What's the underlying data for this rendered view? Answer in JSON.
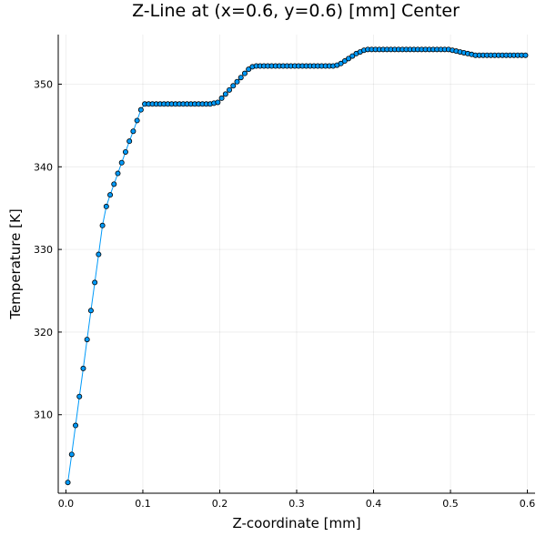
{
  "chart_data": {
    "type": "line",
    "title": "Z-Line at (x=0.6, y=0.6) [mm] Center",
    "xlabel": "Z-coordinate [mm]",
    "ylabel": "Temperature [K]",
    "xlim": [
      -0.01,
      0.61
    ],
    "ylim": [
      300.5,
      356.0
    ],
    "xticks": [
      0.0,
      0.1,
      0.2,
      0.3,
      0.4,
      0.5,
      0.6
    ],
    "xtick_labels": [
      "0.0",
      "0.1",
      "0.2",
      "0.3",
      "0.4",
      "0.5",
      "0.6"
    ],
    "yticks": [
      310,
      320,
      330,
      340,
      350
    ],
    "ytick_labels": [
      "310",
      "320",
      "330",
      "340",
      "350"
    ],
    "grid": true,
    "legend": "none",
    "colors": {
      "series": "#009AF9",
      "marker_edge": "#000000"
    },
    "series": [
      {
        "x": [
          0.0025,
          0.0075,
          0.0125,
          0.0175,
          0.0225,
          0.0275,
          0.0325,
          0.0375,
          0.0425,
          0.0475,
          0.0525,
          0.0575,
          0.0625,
          0.0675,
          0.0725,
          0.0775,
          0.0825,
          0.0875,
          0.0925,
          0.0975,
          0.1025,
          0.1075,
          0.1125,
          0.1175,
          0.1225,
          0.1275,
          0.1325,
          0.1375,
          0.1425,
          0.1475,
          0.1525,
          0.1575,
          0.1625,
          0.1675,
          0.1725,
          0.1775,
          0.1825,
          0.1875,
          0.1925,
          0.1975,
          0.2025,
          0.2075,
          0.2125,
          0.2175,
          0.2225,
          0.2275,
          0.2325,
          0.2375,
          0.2425,
          0.2475,
          0.2525,
          0.2575,
          0.2625,
          0.2675,
          0.2725,
          0.2775,
          0.2825,
          0.2875,
          0.2925,
          0.2975,
          0.3025,
          0.3075,
          0.3125,
          0.3175,
          0.3225,
          0.3275,
          0.3325,
          0.3375,
          0.3425,
          0.3475,
          0.3525,
          0.3575,
          0.3625,
          0.3675,
          0.3725,
          0.3775,
          0.3825,
          0.3875,
          0.3925,
          0.3975,
          0.4025,
          0.4075,
          0.4125,
          0.4175,
          0.4225,
          0.4275,
          0.4325,
          0.4375,
          0.4425,
          0.4475,
          0.4525,
          0.4575,
          0.4625,
          0.4675,
          0.4725,
          0.4775,
          0.4825,
          0.4875,
          0.4925,
          0.4975,
          0.5025,
          0.5075,
          0.5125,
          0.5175,
          0.5225,
          0.5275,
          0.5325,
          0.5375,
          0.5425,
          0.5475,
          0.5525,
          0.5575,
          0.5625,
          0.5675,
          0.5725,
          0.5775,
          0.5825,
          0.5875,
          0.5925,
          0.5975
        ],
        "y": [
          301.8,
          305.2,
          308.7,
          312.2,
          315.6,
          319.1,
          322.6,
          326.0,
          329.4,
          332.9,
          335.2,
          336.6,
          337.9,
          339.2,
          340.5,
          341.8,
          343.1,
          344.3,
          345.6,
          346.9,
          347.6,
          347.6,
          347.6,
          347.6,
          347.6,
          347.6,
          347.6,
          347.6,
          347.6,
          347.6,
          347.6,
          347.6,
          347.6,
          347.6,
          347.6,
          347.6,
          347.6,
          347.6,
          347.7,
          347.8,
          348.3,
          348.8,
          349.3,
          349.8,
          350.3,
          350.8,
          351.3,
          351.8,
          352.1,
          352.2,
          352.2,
          352.2,
          352.2,
          352.2,
          352.2,
          352.2,
          352.2,
          352.2,
          352.2,
          352.2,
          352.2,
          352.2,
          352.2,
          352.2,
          352.2,
          352.2,
          352.2,
          352.2,
          352.2,
          352.2,
          352.3,
          352.5,
          352.8,
          353.1,
          353.4,
          353.7,
          353.9,
          354.1,
          354.2,
          354.2,
          354.2,
          354.2,
          354.2,
          354.2,
          354.2,
          354.2,
          354.2,
          354.2,
          354.2,
          354.2,
          354.2,
          354.2,
          354.2,
          354.2,
          354.2,
          354.2,
          354.2,
          354.2,
          354.2,
          354.2,
          354.1,
          354.0,
          353.9,
          353.8,
          353.7,
          353.6,
          353.5,
          353.5,
          353.5,
          353.5,
          353.5,
          353.5,
          353.5,
          353.5,
          353.5,
          353.5,
          353.5,
          353.5,
          353.5,
          353.5
        ]
      }
    ]
  }
}
